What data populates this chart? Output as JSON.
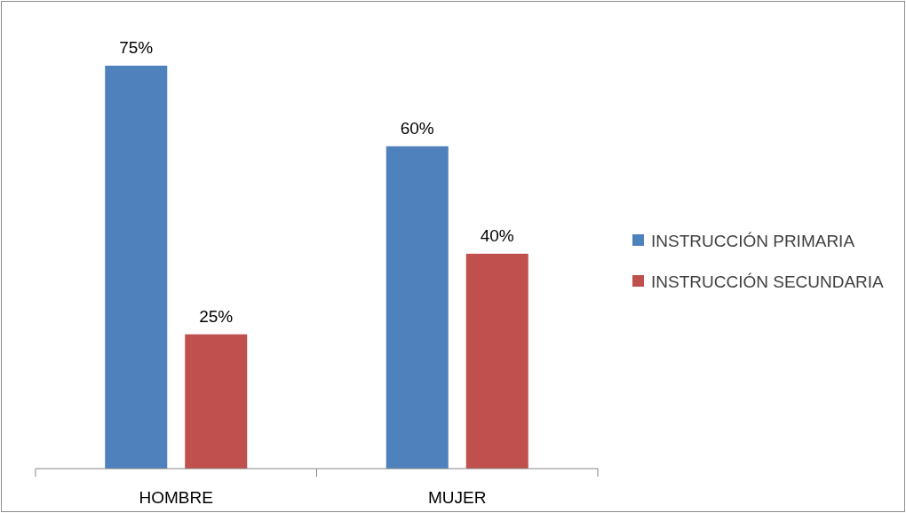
{
  "chart_data": {
    "type": "bar",
    "categories": [
      "HOMBRE",
      "MUJER"
    ],
    "legend": "right",
    "series": [
      {
        "name": "INSTRUCCIÓN PRIMARIA",
        "color": "#4f81bd",
        "values": [
          75,
          60
        ],
        "value_labels": [
          "75%",
          "60%"
        ]
      },
      {
        "name": "INSTRUCCIÓN SECUNDARIA",
        "color": "#c0504d",
        "values": [
          25,
          40
        ],
        "value_labels": [
          "25%",
          "40%"
        ]
      }
    ]
  }
}
